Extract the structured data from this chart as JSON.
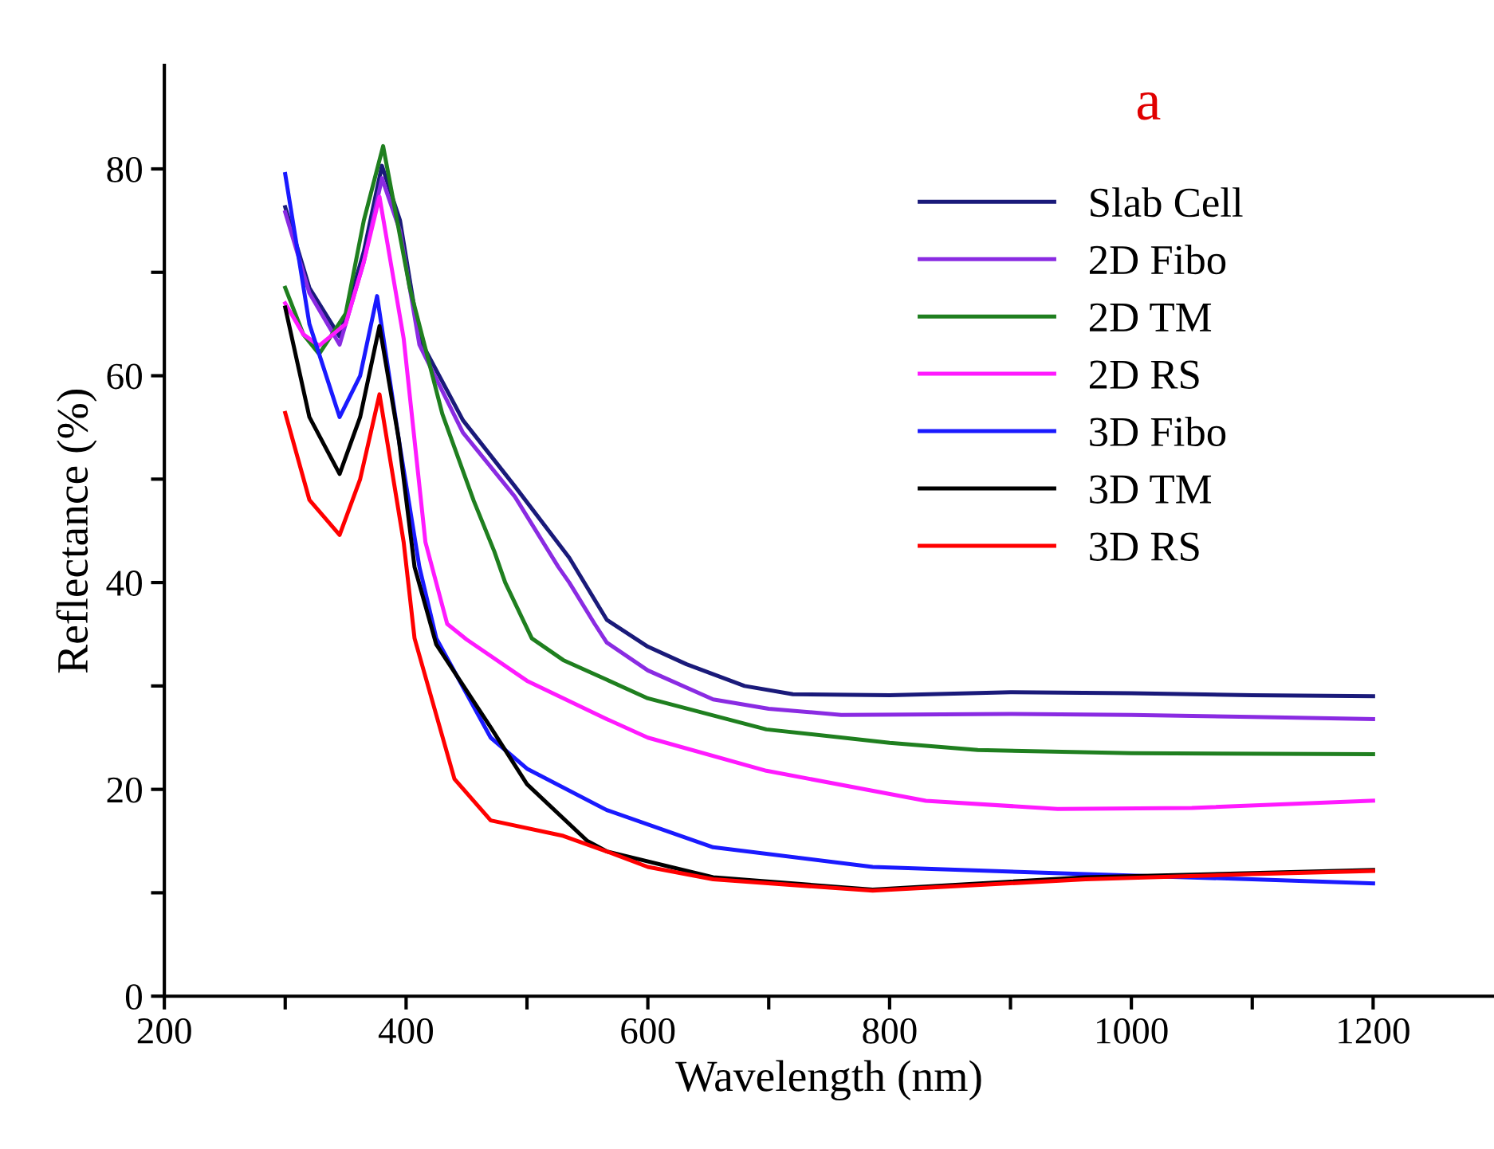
{
  "chart_data": {
    "type": "line",
    "xlabel": "Wavelength (nm)",
    "ylabel": "Reflectance (%)",
    "annotations": [
      "a"
    ],
    "xlim": [
      200,
      1300
    ],
    "ylim": [
      0,
      90
    ],
    "xticks": [
      200,
      {
        "value": 300,
        "label": null
      },
      400,
      {
        "value": 500,
        "label": null
      },
      600,
      {
        "value": 700,
        "label": null
      },
      800,
      {
        "value": 900,
        "label": null
      },
      1000,
      {
        "value": 1100,
        "label": null
      },
      1200
    ],
    "yticks": [
      0,
      {
        "value": 10,
        "label": null
      },
      20,
      {
        "value": 30,
        "label": null
      },
      40,
      {
        "value": 50,
        "label": null
      },
      60,
      {
        "value": 70,
        "label": null
      },
      80
    ],
    "grid": false,
    "legend": "top right",
    "marker": "none",
    "line_style": "solid",
    "series": [
      {
        "name": "Slab Cell",
        "color": "#1a1a7a",
        "x": [
          300,
          320,
          345,
          365,
          380,
          395,
          411,
          447,
          490,
          535,
          566,
          600,
          632,
          680,
          720,
          800,
          900,
          1000,
          1100,
          1200
        ],
        "values": [
          76.3,
          68.5,
          63.8,
          72.0,
          80.3,
          75.0,
          63.6,
          55.7,
          49.3,
          42.4,
          36.4,
          33.8,
          32.1,
          30.0,
          29.2,
          29.1,
          29.4,
          29.3,
          29.1,
          29.0
        ]
      },
      {
        "name": "2D Fibo",
        "color": "#8a2be2",
        "x": [
          300,
          320,
          345,
          365,
          380,
          395,
          411,
          447,
          490,
          526,
          535,
          556,
          566,
          600,
          654,
          700,
          760,
          900,
          1000,
          1100,
          1200
        ],
        "values": [
          75.8,
          68.0,
          63.0,
          71.0,
          79.1,
          74.0,
          63.0,
          54.5,
          48.3,
          41.5,
          40.0,
          36.0,
          34.2,
          31.5,
          28.7,
          27.8,
          27.2,
          27.3,
          27.2,
          27.0,
          26.8
        ]
      },
      {
        "name": "2D TM",
        "color": "#1f7f1f",
        "x": [
          300,
          315,
          328,
          350,
          365,
          381,
          403,
          430,
          456,
          473,
          482,
          504,
          530,
          566,
          600,
          698,
          800,
          873,
          1000,
          1200
        ],
        "values": [
          68.5,
          64.0,
          62.1,
          66.0,
          75.0,
          82.2,
          68.5,
          56.3,
          47.9,
          43.0,
          40.0,
          34.6,
          32.5,
          30.6,
          28.8,
          25.8,
          24.5,
          23.8,
          23.5,
          23.4
        ]
      },
      {
        "name": "2D RS",
        "color": "#ff1aff",
        "x": [
          300,
          315,
          328,
          350,
          365,
          378,
          398,
          416,
          434,
          450,
          500,
          566,
          600,
          698,
          830,
          939,
          1050,
          1200
        ],
        "values": [
          67.0,
          64.0,
          62.9,
          65.0,
          71.0,
          77.3,
          63.6,
          43.9,
          36.0,
          34.5,
          30.5,
          26.8,
          25.0,
          21.8,
          18.9,
          18.1,
          18.2,
          18.9
        ]
      },
      {
        "name": "3D Fibo",
        "color": "#1a1aff",
        "x": [
          300,
          320,
          345,
          362,
          376,
          394,
          411,
          425,
          470,
          500,
          566,
          654,
          786,
          962,
          1100,
          1200
        ],
        "values": [
          79.5,
          65.0,
          56.0,
          60.0,
          67.7,
          53.8,
          41.5,
          34.6,
          25.0,
          22.0,
          18.0,
          14.4,
          12.5,
          11.8,
          11.3,
          10.9
        ]
      },
      {
        "name": "3D TM",
        "color": "#000000",
        "x": [
          300,
          320,
          345,
          362,
          378,
          394,
          407,
          425,
          470,
          500,
          550,
          566,
          654,
          786,
          962,
          1100,
          1200
        ],
        "values": [
          66.6,
          56.0,
          50.5,
          56.0,
          64.8,
          53.8,
          41.5,
          34.0,
          26.0,
          20.5,
          15.0,
          14.0,
          11.5,
          10.3,
          11.5,
          11.9,
          12.2
        ]
      },
      {
        "name": "3D RS",
        "color": "#ff0000",
        "x": [
          300,
          320,
          345,
          362,
          378,
          398,
          407,
          440,
          470,
          530,
          566,
          600,
          654,
          786,
          962,
          1100,
          1200
        ],
        "values": [
          56.4,
          48.0,
          44.6,
          50.0,
          58.2,
          43.9,
          34.6,
          21.0,
          17.0,
          15.5,
          14.0,
          12.5,
          11.3,
          10.2,
          11.3,
          11.8,
          12.1
        ]
      }
    ]
  }
}
